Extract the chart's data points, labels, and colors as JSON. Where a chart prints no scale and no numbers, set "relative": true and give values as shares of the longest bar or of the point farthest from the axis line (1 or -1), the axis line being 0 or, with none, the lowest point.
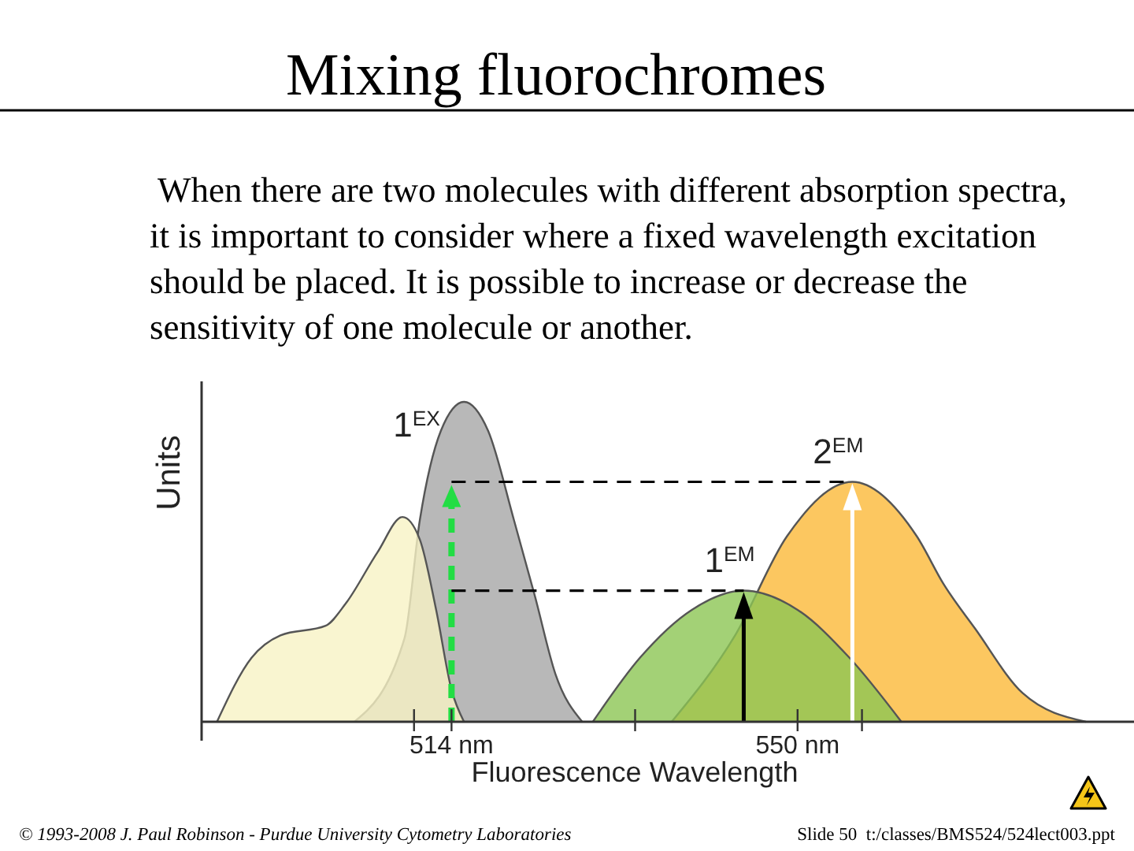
{
  "chart_data": {
    "type": "area",
    "title": "Mixing fluorochromes",
    "subtitle": "When there are two molecules with different absorption spectra, it is important to consider where a fixed wavelength excitation should be placed. It is possible to increase or decrease the sensitivity of one molecule or another.",
    "xlabel": "Fluorescence Wavelength",
    "ylabel": "Units",
    "relative": true,
    "xlim": [
      488,
      585
    ],
    "xticks": [
      {
        "value": 510.1,
        "label": null
      },
      {
        "value": 514,
        "label": "514 nm"
      },
      {
        "value": 533.1,
        "label": null
      },
      {
        "value": 550,
        "label": "550 nm"
      },
      {
        "value": 556.7,
        "label": null
      }
    ],
    "series": [
      {
        "color": "#a6a6a6",
        "x": [
          503.9,
          509.1,
          510.7,
          512.9,
          515.3,
          517.8,
          520.5,
          522.7,
          524.8,
          527.6
        ],
        "values": [
          0,
          0.26,
          0.63,
          0.91,
          1,
          0.91,
          0.63,
          0.39,
          0.15,
          0
        ]
      },
      {
        "color": "#f8f3c4",
        "x": [
          489.6,
          493.2,
          496.2,
          500.9,
          503.0,
          506.3,
          508.9,
          510.7,
          512.4,
          514,
          515.3
        ],
        "values": [
          0,
          0.2,
          0.27,
          0.3,
          0.37,
          0.53,
          0.64,
          0.57,
          0.35,
          0.1,
          0
        ]
      },
      {
        "color": "#fbb938",
        "x": [
          536.9,
          543.5,
          548.9,
          555.7,
          562.4,
          565.2,
          568.5,
          573.4,
          580.0
        ],
        "values": [
          0,
          0.27,
          0.58,
          0.75,
          0.58,
          0.43,
          0.29,
          0.09,
          0
        ]
      },
      {
        "color": "#8cc654",
        "x": [
          528.7,
          533.6,
          539.0,
          544.4,
          550.0,
          555.4,
          560.8
        ],
        "values": [
          0,
          0.2,
          0.35,
          0.41,
          0.35,
          0.2,
          0
        ]
      }
    ],
    "ref_lines": [
      {
        "axis": "x",
        "value": 514,
        "color": "#22dd44",
        "line_style": "dashed"
      },
      {
        "axis": "y",
        "value": 0.75,
        "color": "#000000",
        "line_style": "dashed"
      },
      {
        "axis": "y",
        "value": 0.41,
        "color": "#000000",
        "line_style": "dashed"
      }
    ],
    "annotations": [
      {
        "text": "1$^{EX}$",
        "x": 515.3,
        "y": 1
      },
      {
        "text": "2$^{EM}$",
        "x": 555.7,
        "y": 0.75
      },
      {
        "text": "1$^{EM}$",
        "x": 544.4,
        "y": 0.41
      },
      "© 1993-2008 J. Paul Robinson - Purdue University Cytometry Laboratories",
      "Slide 50  t:/classes/BMS524/524lect003.ppt"
    ]
  }
}
